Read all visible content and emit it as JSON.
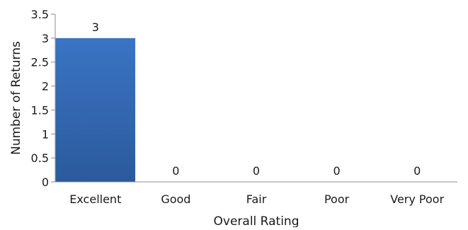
{
  "chart_data": {
    "type": "bar",
    "categories": [
      "Excellent",
      "Good",
      "Fair",
      "Poor",
      "Very Poor"
    ],
    "values": [
      3,
      0,
      0,
      0,
      0
    ],
    "data_labels": [
      "3",
      "0",
      "0",
      "0",
      "0"
    ],
    "title": "",
    "xlabel": "Overall Rating",
    "ylabel": "Number of Returns",
    "ylim": [
      0,
      3.5
    ],
    "yticks": [
      "0",
      "0.5",
      "1",
      "1.5",
      "2",
      "2.5",
      "3",
      "3.5"
    ],
    "grid": false,
    "legend": "none",
    "bar_color": "#3a74c4",
    "bar_color_dark": "#2b5a9c"
  }
}
